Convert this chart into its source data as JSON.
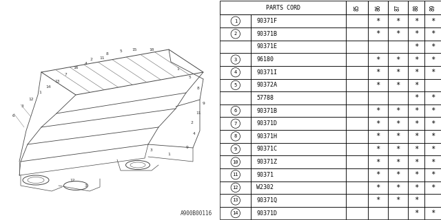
{
  "title": "A900B00116",
  "header": "PARTS CORD",
  "years": [
    "85",
    "86",
    "87",
    "88",
    "89"
  ],
  "rows": [
    {
      "num": "1",
      "parts": [
        "90371F"
      ],
      "marks": [
        [
          false,
          true,
          true,
          true,
          true
        ]
      ]
    },
    {
      "num": "2",
      "parts": [
        "90371B",
        "90371E"
      ],
      "marks": [
        [
          false,
          true,
          true,
          true,
          true
        ],
        [
          false,
          false,
          false,
          true,
          true
        ]
      ]
    },
    {
      "num": "3",
      "parts": [
        "96180"
      ],
      "marks": [
        [
          false,
          true,
          true,
          true,
          true
        ]
      ]
    },
    {
      "num": "4",
      "parts": [
        "90371I"
      ],
      "marks": [
        [
          false,
          true,
          true,
          true,
          true
        ]
      ]
    },
    {
      "num": "5",
      "parts": [
        "90372A",
        "57788"
      ],
      "marks": [
        [
          false,
          true,
          true,
          true,
          false
        ],
        [
          false,
          false,
          false,
          true,
          true
        ]
      ]
    },
    {
      "num": "6",
      "parts": [
        "90371B"
      ],
      "marks": [
        [
          false,
          true,
          true,
          true,
          true
        ]
      ]
    },
    {
      "num": "7",
      "parts": [
        "90371D"
      ],
      "marks": [
        [
          false,
          true,
          true,
          true,
          true
        ]
      ]
    },
    {
      "num": "8",
      "parts": [
        "90371H"
      ],
      "marks": [
        [
          false,
          true,
          true,
          true,
          true
        ]
      ]
    },
    {
      "num": "9",
      "parts": [
        "90371C"
      ],
      "marks": [
        [
          false,
          true,
          true,
          true,
          true
        ]
      ]
    },
    {
      "num": "10",
      "parts": [
        "90371Z"
      ],
      "marks": [
        [
          false,
          true,
          true,
          true,
          true
        ]
      ]
    },
    {
      "num": "11",
      "parts": [
        "90371"
      ],
      "marks": [
        [
          false,
          true,
          true,
          true,
          true
        ]
      ]
    },
    {
      "num": "12",
      "parts": [
        "W2302"
      ],
      "marks": [
        [
          false,
          true,
          true,
          true,
          true
        ]
      ]
    },
    {
      "num": "13",
      "parts": [
        "90371Q"
      ],
      "marks": [
        [
          false,
          true,
          true,
          true,
          false
        ]
      ]
    },
    {
      "num": "14",
      "parts": [
        "90371D"
      ],
      "marks": [
        [
          false,
          false,
          false,
          true,
          true
        ]
      ]
    }
  ],
  "bg_color": "#ffffff",
  "line_color": "#000000",
  "text_color": "#000000",
  "font_size": 6.0,
  "circle_num_font_size": 5.0,
  "year_font_size": 5.5,
  "mark_font_size": 7.5
}
